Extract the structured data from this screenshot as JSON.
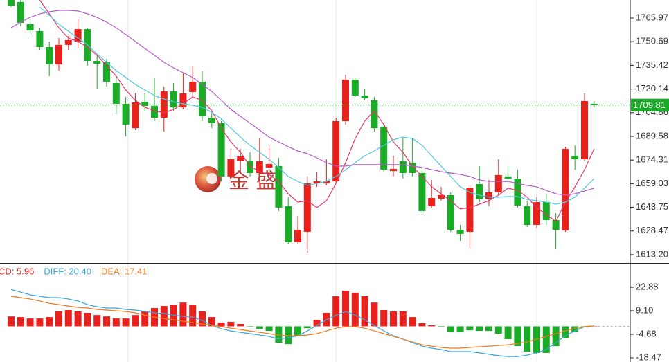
{
  "chart_data": [
    {
      "type": "candlestick",
      "up_color": "#e8211c",
      "down_color": "#1aab27",
      "ylim": [
        1607.8,
        1777.6
      ],
      "yticks": [
        1765.97,
        1750.69,
        1735.42,
        1720.14,
        1704.86,
        1689.58,
        1674.31,
        1659.03,
        1643.75,
        1628.47,
        {
          "value": 1613.2,
          "label": "1613.20"
        }
      ],
      "last_price": 1709.81,
      "last_price_color": "#1aab27",
      "watermark": "金 盛",
      "open": [
        1777.6,
        1776.3,
        1762.0,
        1757.5,
        1747.2,
        1736.0,
        1748.6,
        1750.8,
        1758.8,
        1738.3,
        1737.4,
        1724.0,
        1710.6,
        1694.9,
        1711.9,
        1709.2,
        1701.6,
        1718.6,
        1708.3,
        1718.2,
        1724.9,
        1701.6,
        1698.1,
        1663.7,
        1673.9,
        1673.9,
        1665.9,
        1669.5,
        1670.4,
        1644.5,
        1621.2,
        1627.9,
        1659.2,
        1659.2,
        1660.5,
        1699.4,
        1726.2,
        1715.9,
        1712.8,
        1695.8,
        1667.2,
        1673.5,
        1672.6,
        1665.9,
        1644.5,
        1649.4,
        1651.6,
        1629.2,
        1627.9,
        1658.7,
        1648.9,
        1653.4,
        1663.7,
        1662.3,
        1644.5,
        1632.4,
        1647.1,
        1635.5,
        1628.8,
        1677.1,
        1674.8,
        1710.6
      ],
      "high": [
        1777.6,
        1777.6,
        1765.1,
        1759.7,
        1750.8,
        1753.0,
        1754.4,
        1765.1,
        1759.7,
        1741.9,
        1739.6,
        1728.5,
        1715.0,
        1717.3,
        1717.3,
        1727.6,
        1721.7,
        1724.0,
        1730.7,
        1734.7,
        1731.6,
        1706.1,
        1699.4,
        1681.5,
        1681.5,
        1679.3,
        1688.2,
        1683.8,
        1675.7,
        1650.3,
        1638.2,
        1663.7,
        1666.8,
        1674.8,
        1701.6,
        1729.3,
        1727.6,
        1720.4,
        1715.0,
        1698.1,
        1677.1,
        1688.2,
        1688.2,
        1670.4,
        1661.4,
        1656.9,
        1653.4,
        1632.4,
        1657.9,
        1670.4,
        1661.4,
        1674.8,
        1670.4,
        1668.1,
        1648.0,
        1650.3,
        1652.5,
        1640.0,
        1682.9,
        1683.8,
        1717.3,
        1712.4
      ],
      "low": [
        1773.1,
        1760.6,
        1755.3,
        1745.4,
        1728.5,
        1732.0,
        1745.4,
        1746.3,
        1735.2,
        1720.4,
        1721.7,
        1703.9,
        1689.6,
        1693.6,
        1706.1,
        1699.4,
        1692.7,
        1706.1,
        1707.0,
        1715.0,
        1699.4,
        1694.9,
        1660.5,
        1659.2,
        1665.9,
        1663.7,
        1656.9,
        1668.1,
        1641.3,
        1620.3,
        1620.3,
        1614.5,
        1656.9,
        1657.9,
        1659.2,
        1697.2,
        1715.0,
        1712.8,
        1692.7,
        1666.8,
        1663.7,
        1662.3,
        1663.7,
        1640.0,
        1643.6,
        1648.0,
        1627.9,
        1622.1,
        1617.6,
        1647.1,
        1644.5,
        1651.6,
        1660.5,
        1643.6,
        1631.0,
        1630.1,
        1632.4,
        1616.8,
        1627.9,
        1668.1,
        1673.9,
        1708.3
      ],
      "close": [
        1774.0,
        1762.9,
        1757.9,
        1747.2,
        1736.0,
        1748.6,
        1751.7,
        1758.8,
        1738.3,
        1736.5,
        1724.9,
        1710.6,
        1697.2,
        1711.5,
        1709.2,
        1701.6,
        1718.6,
        1708.3,
        1717.3,
        1724.9,
        1702.5,
        1698.1,
        1663.7,
        1674.8,
        1676.6,
        1665.9,
        1673.5,
        1671.7,
        1643.6,
        1621.2,
        1629.2,
        1659.2,
        1660.5,
        1660.5,
        1699.4,
        1726.2,
        1715.9,
        1714.2,
        1694.9,
        1668.1,
        1668.6,
        1665.9,
        1665.9,
        1641.3,
        1649.8,
        1651.6,
        1629.2,
        1626.6,
        1656.1,
        1648.9,
        1653.4,
        1664.6,
        1662.3,
        1644.9,
        1632.4,
        1647.1,
        1635.5,
        1629.2,
        1681.5,
        1674.8,
        1712.4,
        1709.7
      ],
      "moving_averages": [
        {
          "color": "#e8336a",
          "values": [
            null,
            null,
            null,
            1777.6,
            1768.7,
            1759.7,
            1753.0,
            1750.8,
            1747.2,
            1741.9,
            1735.2,
            1728.5,
            1719.5,
            1712.8,
            1708.3,
            1706.1,
            1704.8,
            1707.0,
            1710.6,
            1715.0,
            1712.8,
            1706.1,
            1694.9,
            1686.0,
            1679.3,
            1670.4,
            1666.8,
            1665.0,
            1660.5,
            1652.5,
            1647.1,
            1648.0,
            1643.6,
            1648.0,
            1659.2,
            1672.6,
            1688.2,
            1699.4,
            1706.1,
            1697.2,
            1686.0,
            1679.3,
            1670.4,
            1663.7,
            1657.0,
            1652.5,
            1648.0,
            1642.7,
            1643.6,
            1645.8,
            1648.0,
            1651.6,
            1656.1,
            1654.7,
            1650.3,
            1643.6,
            1639.1,
            1634.6,
            1647.1,
            1657.0,
            1668.1,
            1681.5
          ]
        },
        {
          "color": "#4cc9e0",
          "values": [
            null,
            null,
            null,
            1773.1,
            1767.8,
            1762.0,
            1757.5,
            1753.0,
            1748.6,
            1742.7,
            1737.4,
            1732.0,
            1727.6,
            1723.1,
            1719.5,
            1715.9,
            1713.7,
            1711.9,
            1710.6,
            1709.7,
            1708.3,
            1705.2,
            1700.8,
            1694.9,
            1689.1,
            1683.8,
            1679.3,
            1674.8,
            1669.5,
            1663.7,
            1660.5,
            1657.9,
            1659.2,
            1660.5,
            1663.7,
            1668.1,
            1672.6,
            1677.1,
            1680.2,
            1683.8,
            1687.3,
            1689.1,
            1688.2,
            1683.8,
            1677.1,
            1670.4,
            1663.7,
            1657.0,
            1653.4,
            1651.6,
            1650.3,
            1650.3,
            1650.7,
            1650.7,
            1648.9,
            1648.0,
            1647.1,
            1645.8,
            1647.1,
            1650.3,
            1656.1,
            1662.3
          ]
        },
        {
          "color": "#b55ac8",
          "values": [
            1759.7,
            1763.3,
            1766.4,
            1768.7,
            1770.0,
            1770.9,
            1770.9,
            1770.5,
            1768.7,
            1766.4,
            1763.3,
            1759.7,
            1755.3,
            1750.8,
            1746.3,
            1741.9,
            1737.4,
            1733.8,
            1730.7,
            1727.6,
            1723.1,
            1718.6,
            1712.8,
            1707.0,
            1702.5,
            1698.1,
            1693.6,
            1689.1,
            1686.0,
            1682.9,
            1680.2,
            1678.4,
            1675.7,
            1672.6,
            1670.4,
            1670.4,
            1671.3,
            1671.3,
            1671.3,
            1671.3,
            1671.3,
            1671.3,
            1670.4,
            1669.5,
            1668.1,
            1666.8,
            1665.9,
            1665.0,
            1663.7,
            1661.4,
            1660.5,
            1660.5,
            1660.5,
            1659.2,
            1657.9,
            1657.0,
            1654.7,
            1652.5,
            1651.6,
            1652.5,
            1654.3,
            1656.1
          ]
        }
      ]
    },
    {
      "type": "macd",
      "ylim": [
        -20.9,
        36.66
      ],
      "yticks": [
        22.88,
        {
          "value": 9.1,
          "label": "9.10"
        },
        -4.68,
        -18.47
      ],
      "series": [
        {
          "name": "CD: 5.96",
          "style": "bar",
          "color": "#e8211c",
          "neg_color": "#1aab27",
          "values": [
            5.8,
            5.4,
            4.6,
            4.6,
            5.4,
            8.7,
            9.5,
            8.7,
            7.9,
            6.6,
            5.8,
            4.6,
            4.6,
            6.6,
            8.7,
            10.7,
            11.9,
            12.7,
            13.9,
            12.7,
            8.7,
            5.4,
            2.2,
            2.6,
            1.4,
            -0.2,
            -1.5,
            -2.7,
            -9.6,
            -10.4,
            -5.5,
            -1.1,
            3.8,
            7.9,
            17.6,
            20.8,
            19.6,
            17.6,
            13.9,
            9.5,
            8.7,
            8.7,
            5.4,
            1.8,
            0.6,
            -0.2,
            -3.5,
            -3.5,
            -2.3,
            -2.7,
            -2.7,
            -4.3,
            -7.5,
            -11.6,
            -14.8,
            -15.6,
            -15.6,
            -11.6,
            -6.7,
            -3.5,
            -0.2,
            0.2
          ]
        },
        {
          "name": "DIFF: 20.40",
          "style": "line",
          "color": "#3aa6dd",
          "values": [
            21.6,
            20.0,
            18.4,
            17.6,
            16.8,
            16.8,
            16.0,
            14.8,
            12.7,
            11.5,
            10.7,
            10.7,
            9.9,
            9.5,
            8.7,
            7.9,
            7.5,
            6.6,
            5.8,
            5.4,
            3.4,
            0.6,
            -1.5,
            -2.7,
            -3.5,
            -4.3,
            -5.1,
            -5.9,
            -7.5,
            -6.7,
            -5.5,
            -2.7,
            0.6,
            3.8,
            6.6,
            8.7,
            6.6,
            3.8,
            0.6,
            -2.7,
            -5.5,
            -7.5,
            -9.6,
            -11.6,
            -12.8,
            -13.6,
            -14.8,
            -14.8,
            -14.8,
            -15.6,
            -16.4,
            -17.2,
            -17.7,
            -17.7,
            -16.9,
            -15.6,
            -13.6,
            -9.6,
            -5.5,
            -2.7,
            -0.2,
            0.2
          ]
        },
        {
          "name": "DEA: 17.41",
          "style": "line",
          "color": "#f07a1c",
          "values": [
            17.6,
            16.8,
            16.0,
            14.8,
            13.5,
            12.7,
            11.9,
            11.1,
            10.7,
            9.9,
            9.5,
            9.1,
            8.7,
            7.9,
            6.6,
            5.4,
            4.6,
            3.8,
            3.0,
            2.2,
            1.4,
            0.6,
            -0.2,
            -1.1,
            -1.9,
            -2.7,
            -3.5,
            -4.3,
            -5.1,
            -5.5,
            -5.5,
            -5.1,
            -4.3,
            -2.7,
            -1.1,
            -0.2,
            -0.2,
            -1.1,
            -2.7,
            -4.3,
            -5.9,
            -7.5,
            -9.2,
            -10.8,
            -11.6,
            -12.4,
            -12.8,
            -12.8,
            -12.4,
            -12.0,
            -11.6,
            -11.2,
            -10.8,
            -10.0,
            -9.2,
            -7.5,
            -5.9,
            -4.3,
            -2.7,
            -1.1,
            -0.2,
            0.2
          ]
        }
      ]
    }
  ]
}
